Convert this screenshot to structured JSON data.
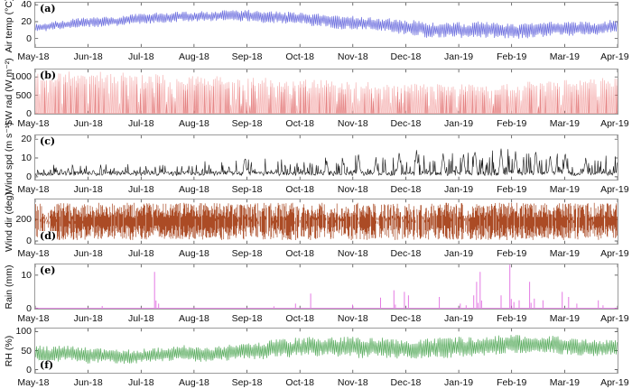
{
  "x_axis": {
    "tick_labels": [
      "May-18",
      "Jun-18",
      "Jul-18",
      "Aug-18",
      "Sep-18",
      "Oct-18",
      "Nov-18",
      "Dec-18",
      "Jan-19",
      "Feb-19",
      "Mar-19",
      "Apr-19"
    ]
  },
  "panels": [
    {
      "key": "a",
      "label": "(a)",
      "label_pos": "top",
      "ylabel": "Air temp (°C)",
      "color": "#5356d8"
    },
    {
      "key": "b",
      "label": "(b)",
      "label_pos": "top",
      "ylabel": "SW rad (W m⁻²)",
      "color": "#f2a3a3",
      "color_dark": "#d85c5c"
    },
    {
      "key": "c",
      "label": "(c)",
      "label_pos": "top",
      "ylabel": "Wind spd (m s⁻¹)",
      "color": "#141414"
    },
    {
      "key": "d",
      "label": "(d)",
      "label_pos": "bottom",
      "ylabel": "Wind dir (deg)",
      "color": "#a43c12"
    },
    {
      "key": "e",
      "label": "(e)",
      "label_pos": "top",
      "ylabel": "Rain (mm)",
      "color": "#e16be0"
    },
    {
      "key": "f",
      "label": "(f)",
      "label_pos": "bottom",
      "ylabel": "RH (%)",
      "color": "#3f9f45"
    }
  ],
  "chart_data": [
    {
      "type": "line",
      "series_name": "Air temperature",
      "units": "°C",
      "x_categories": [
        "May-18",
        "Jun-18",
        "Jul-18",
        "Aug-18",
        "Sep-18",
        "Oct-18",
        "Nov-18",
        "Dec-18",
        "Jan-19",
        "Feb-19",
        "Mar-19",
        "Apr-19"
      ],
      "ylim": [
        -10,
        42.5
      ],
      "yticks": [
        0,
        20,
        40
      ],
      "monthly_mean": [
        13,
        18,
        22,
        23,
        25,
        24,
        18,
        12,
        9,
        9,
        11,
        12
      ],
      "daily_amplitude": [
        4,
        4.5,
        5,
        5,
        5.5,
        6,
        6.5,
        7,
        8,
        7.5,
        7,
        6
      ],
      "render": "zigzag",
      "seed": 7,
      "clamp": [
        -8,
        41
      ],
      "walk": 1.4
    },
    {
      "type": "area",
      "series_name": "Shortwave radiation",
      "units": "W m⁻²",
      "x_categories": [
        "May-18",
        "Jun-18",
        "Jul-18",
        "Aug-18",
        "Sep-18",
        "Oct-18",
        "Nov-18",
        "Dec-18",
        "Jan-19",
        "Feb-19",
        "Mar-19",
        "Apr-19"
      ],
      "ylim": [
        0,
        1200
      ],
      "yticks": [
        0,
        500,
        1000
      ],
      "monthly_peak": [
        1150,
        1180,
        1120,
        1060,
        1020,
        970,
        900,
        830,
        810,
        860,
        950,
        1030
      ],
      "cloudy_fraction": 0.16,
      "render": "solar",
      "seed": 11
    },
    {
      "type": "line",
      "series_name": "Wind speed",
      "units": "m s⁻¹",
      "x_categories": [
        "May-18",
        "Jun-18",
        "Jul-18",
        "Aug-18",
        "Sep-18",
        "Oct-18",
        "Nov-18",
        "Dec-18",
        "Jan-19",
        "Feb-19",
        "Mar-19",
        "Apr-19"
      ],
      "ylim": [
        -1.5,
        22
      ],
      "yticks": [
        0,
        10,
        20
      ],
      "monthly_gust": [
        0.35,
        0.35,
        0.35,
        0.4,
        0.55,
        0.5,
        0.65,
        0.75,
        0.8,
        1,
        0.85,
        0.6
      ],
      "peak_events": [
        [
          0.36,
          11.5
        ],
        [
          0.5,
          9
        ],
        [
          0.555,
          13
        ],
        [
          0.585,
          10
        ],
        [
          0.625,
          14.5
        ],
        [
          0.655,
          15
        ],
        [
          0.7,
          14
        ],
        [
          0.735,
          13
        ],
        [
          0.755,
          16
        ],
        [
          0.8,
          18.5
        ],
        [
          0.825,
          14
        ],
        [
          0.86,
          15
        ],
        [
          0.885,
          12
        ],
        [
          0.91,
          14
        ],
        [
          0.945,
          11
        ]
      ],
      "render": "gust",
      "seed": 13
    },
    {
      "type": "line",
      "series_name": "Wind direction",
      "units": "deg",
      "x_categories": [
        "May-18",
        "Jun-18",
        "Jul-18",
        "Aug-18",
        "Sep-18",
        "Oct-18",
        "Nov-18",
        "Dec-18",
        "Jan-19",
        "Feb-19",
        "Mar-19",
        "Apr-19"
      ],
      "ylim": [
        -25,
        385
      ],
      "yticks": [
        0,
        200
      ],
      "range": [
        0,
        360
      ],
      "monthly_density": [
        0.5,
        0.95,
        0.95,
        0.9,
        0.8,
        0.75,
        0.8,
        0.65,
        0.75,
        0.92,
        0.92,
        0.9
      ],
      "render": "dirband",
      "seed": 17
    },
    {
      "type": "bar",
      "series_name": "Rainfall",
      "units": "mm",
      "x_categories": [
        "May-18",
        "Jun-18",
        "Jul-18",
        "Aug-18",
        "Sep-18",
        "Oct-18",
        "Nov-18",
        "Dec-18",
        "Jan-19",
        "Feb-19",
        "Mar-19",
        "Apr-19"
      ],
      "ylim": [
        0,
        13.2
      ],
      "yticks": [
        0,
        10
      ],
      "events": [
        [
          0.115,
          0.8
        ],
        [
          0.205,
          11
        ],
        [
          0.212,
          1.5
        ],
        [
          0.41,
          0.7
        ],
        [
          0.447,
          1.5
        ],
        [
          0.473,
          4.5
        ],
        [
          0.545,
          1.2
        ],
        [
          0.593,
          3.3
        ],
        [
          0.616,
          5.5
        ],
        [
          0.634,
          5
        ],
        [
          0.641,
          4
        ],
        [
          0.694,
          3.5
        ],
        [
          0.73,
          1.5
        ],
        [
          0.74,
          1
        ],
        [
          0.753,
          4
        ],
        [
          0.758,
          8
        ],
        [
          0.764,
          11
        ],
        [
          0.8,
          4
        ],
        [
          0.815,
          13.2
        ],
        [
          0.822,
          2
        ],
        [
          0.831,
          2.5
        ],
        [
          0.849,
          8
        ],
        [
          0.857,
          3
        ],
        [
          0.872,
          2.5
        ],
        [
          0.905,
          5
        ],
        [
          0.916,
          3.5
        ],
        [
          0.93,
          1.5
        ],
        [
          0.967,
          2.5
        ],
        [
          0.975,
          1
        ]
      ],
      "render": "rain",
      "seed": 1
    },
    {
      "type": "line",
      "series_name": "Relative humidity",
      "units": "%",
      "x_categories": [
        "May-18",
        "Jun-18",
        "Jul-18",
        "Aug-18",
        "Sep-18",
        "Oct-18",
        "Nov-18",
        "Dec-18",
        "Jan-19",
        "Feb-19",
        "Mar-19",
        "Apr-19"
      ],
      "ylim": [
        -8,
        108
      ],
      "yticks": [
        0,
        50,
        100
      ],
      "monthly_mean": [
        45,
        40,
        38,
        45,
        52,
        62,
        60,
        55,
        60,
        62,
        58,
        55
      ],
      "daily_amplitude": [
        18,
        16,
        15,
        16,
        17,
        20,
        22,
        20,
        22,
        20,
        20,
        16
      ],
      "render": "zigzag",
      "seed": 23,
      "clamp": [
        3,
        99.5
      ],
      "walk": 3
    }
  ]
}
